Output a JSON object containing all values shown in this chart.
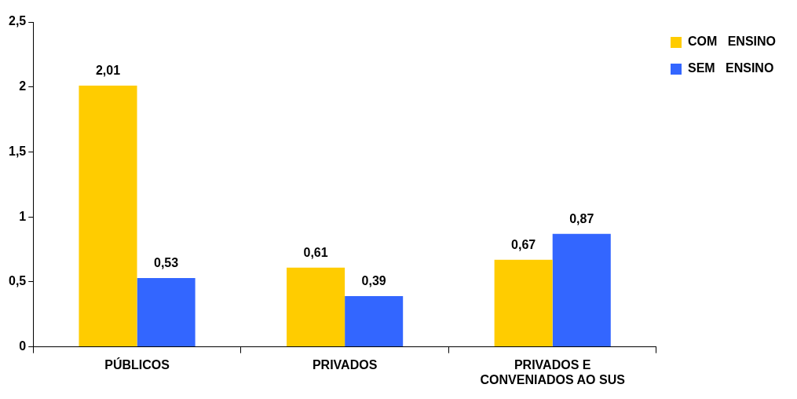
{
  "chart_data": {
    "type": "bar",
    "categories": [
      "PÚBLICOS",
      "PRIVADOS",
      "PRIVADOS E\nCONVENIADOS AO SUS"
    ],
    "series": [
      {
        "name": "COM   ENSINO",
        "color": "#ffcc00",
        "values": [
          2.01,
          0.61,
          0.67
        ],
        "value_labels": [
          "2,01",
          "0,61",
          "0,67"
        ]
      },
      {
        "name": "SEM   ENSINO",
        "color": "#3366ff",
        "values": [
          0.53,
          0.39,
          0.87
        ],
        "value_labels": [
          "0,53",
          "0,39",
          "0,87"
        ]
      }
    ],
    "ylim": [
      0,
      2.5
    ],
    "yticks": [
      0,
      {
        "value": 0.5,
        "label": "0,5"
      },
      1,
      {
        "value": 1.5,
        "label": "1,5"
      },
      2,
      {
        "value": 2.5,
        "label": "2,5"
      }
    ],
    "grid": false,
    "legend": "top right"
  }
}
